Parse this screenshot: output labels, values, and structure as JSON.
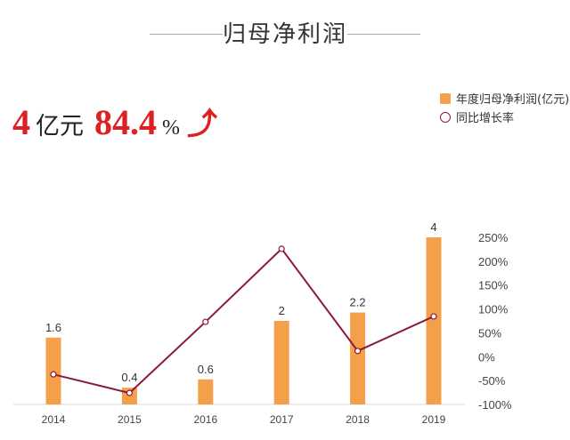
{
  "title": "归母净利润",
  "headline": {
    "value": "4",
    "value_unit": "亿元",
    "growth": "84.4",
    "growth_unit": "%",
    "arrow_icon": "up-arrow-icon"
  },
  "legend": {
    "bar_label": "年度归母净利润(亿元)",
    "line_label": "同比增长率"
  },
  "colors": {
    "bar": "#f4a04a",
    "line": "#8b1a3e",
    "highlight": "#e02020"
  },
  "chart_data": {
    "type": "bar+line",
    "categories": [
      "2014",
      "2015",
      "2016",
      "2017",
      "2018",
      "2019"
    ],
    "series": [
      {
        "name": "年度归母净利润(亿元)",
        "type": "bar",
        "axis": "left-hidden",
        "values": [
          1.6,
          0.4,
          0.6,
          2,
          2.2,
          4
        ],
        "labels": [
          "1.6",
          "0.4",
          "0.6",
          "2",
          "2.2",
          "4"
        ]
      },
      {
        "name": "同比增长率",
        "type": "line",
        "axis": "right",
        "values": [
          -37,
          -76,
          73,
          226,
          12,
          84.4
        ]
      }
    ],
    "y_right": {
      "ticks": [
        "250%",
        "200%",
        "150%",
        "100%",
        "50%",
        "0%",
        "-50%",
        "-100%"
      ],
      "range": [
        -100,
        250
      ]
    },
    "y_left_range": [
      0,
      4
    ],
    "grid": false,
    "legend_position": "top-right"
  }
}
